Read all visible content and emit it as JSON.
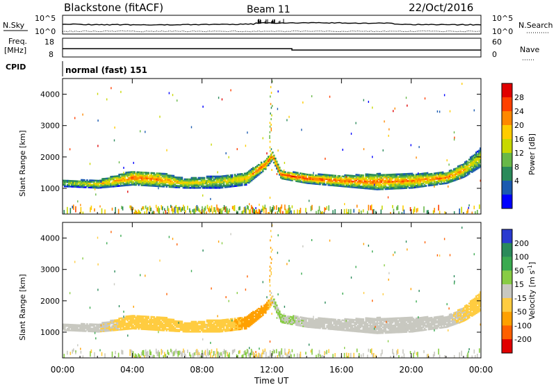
{
  "header": {
    "station": "Blackstone (fitACF)",
    "beam": "Beam 11",
    "date": "22/Oct/2016"
  },
  "noise_panel": {
    "left_label": "N.Sky",
    "right_label": "N.Search",
    "left_ticks": [
      "10^5",
      "10^0"
    ],
    "right_ticks": [
      "10^5",
      "10^0"
    ]
  },
  "freq_panel": {
    "left_label_1": "Freq.",
    "left_label_2": "[MHz]",
    "left_ticks": [
      "18",
      "8"
    ],
    "right_label": "Nave",
    "right_ticks": [
      "60",
      "0"
    ]
  },
  "cpid_panel": {
    "label": "CPID",
    "text": "normal (fast) 151"
  },
  "power_panel": {
    "ylabel": "Slant Range [km]",
    "cbar_label": "Power [dB]",
    "cbar_ticks": [
      "28",
      "24",
      "20",
      "16",
      "12",
      "8",
      "4"
    ],
    "cbar_colors": [
      "#e00000",
      "#ff4000",
      "#ff8800",
      "#ffcc00",
      "#c8d800",
      "#68b848",
      "#2a8a5a",
      "#1a5ab0",
      "#0000ff"
    ]
  },
  "velocity_panel": {
    "ylabel": "Slant Range [km]",
    "cbar_label": "Velocity [m s",
    "cbar_label_sup": "-1",
    "cbar_label_end": "]",
    "cbar_ticks": [
      "200",
      "100",
      "50",
      "15",
      "-15",
      "-50",
      "-100",
      "-200"
    ],
    "cbar_colors": [
      "#2a3ad0",
      "#2a8a5a",
      "#3aaa50",
      "#88cc44",
      "#c8c8c0",
      "#ffcc40",
      "#ffa000",
      "#ff6000",
      "#e00000"
    ]
  },
  "xaxis": {
    "label": "Time UT",
    "ticks": [
      "00:00",
      "04:00",
      "08:00",
      "12:00",
      "16:00",
      "20:00",
      "00:00"
    ]
  },
  "chart_data": {
    "type": "heatmap",
    "x_range": [
      "00:00",
      "24:00"
    ],
    "y_range_km": [
      180,
      4500
    ],
    "y_ticks": [
      1000,
      2000,
      3000,
      4000
    ],
    "power_db_range": [
      0,
      30
    ],
    "velocity_range": [
      -250,
      250
    ],
    "main_echo_band": {
      "time_h": [
        0,
        2,
        4,
        5.5,
        7,
        9,
        10.5,
        11.6,
        12,
        12.5,
        14,
        16,
        18,
        20,
        22,
        23,
        24
      ],
      "range_lower_km": [
        1050,
        1000,
        1100,
        1050,
        1000,
        1000,
        1100,
        1600,
        1900,
        1300,
        1150,
        1050,
        950,
        1000,
        1150,
        1350,
        1700
      ],
      "range_upper_km": [
        1250,
        1250,
        1550,
        1500,
        1300,
        1400,
        1500,
        1900,
        2150,
        1550,
        1450,
        1400,
        1450,
        1450,
        1500,
        1800,
        2300
      ],
      "power_db": [
        14,
        18,
        24,
        22,
        18,
        16,
        20,
        26,
        24,
        26,
        26,
        24,
        24,
        22,
        24,
        20,
        16
      ],
      "velocity_ms": [
        -5,
        -5,
        -30,
        -40,
        -35,
        -30,
        -60,
        -90,
        10,
        20,
        5,
        0,
        0,
        5,
        0,
        -20,
        -30
      ]
    }
  }
}
